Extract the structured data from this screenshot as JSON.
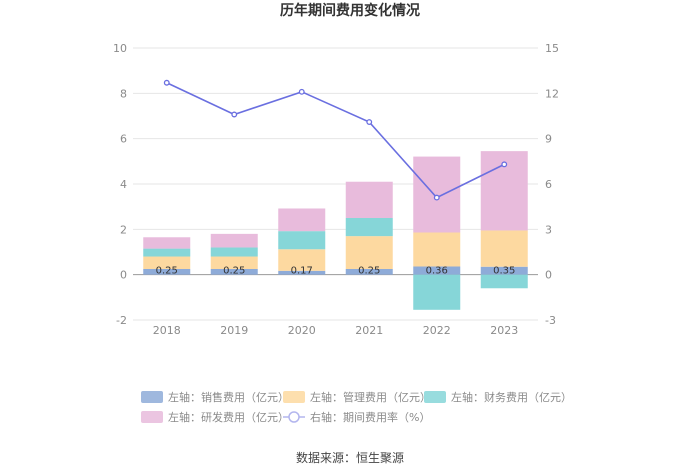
{
  "chart_data": {
    "type": "bar",
    "title": "历年期间费用变化情况",
    "categories": [
      "2018",
      "2019",
      "2020",
      "2021",
      "2022",
      "2023"
    ],
    "stacked": true,
    "series": [
      {
        "name": "左轴：销售费用（亿元）",
        "axis": "left",
        "kind": "bar",
        "color": "#8eabd8",
        "values": [
          0.25,
          0.25,
          0.17,
          0.25,
          0.36,
          0.35
        ]
      },
      {
        "name": "左轴：管理费用（亿元）",
        "axis": "left",
        "kind": "bar",
        "color": "#fdd9a0",
        "values": [
          0.55,
          0.55,
          0.95,
          1.45,
          1.5,
          1.6
        ]
      },
      {
        "name": "左轴：财务费用（亿元）",
        "axis": "left",
        "kind": "bar",
        "color": "#86d6d8",
        "values": [
          0.35,
          0.4,
          0.8,
          0.8,
          -1.55,
          -0.6
        ]
      },
      {
        "name": "左轴：研发费用（亿元）",
        "axis": "left",
        "kind": "bar",
        "color": "#e8bbdc",
        "values": [
          0.5,
          0.6,
          1.0,
          1.6,
          3.35,
          3.5
        ]
      },
      {
        "name": "右轴：期间费用率（%）",
        "axis": "right",
        "kind": "line",
        "color": "#6a6fe0",
        "values": [
          12.7,
          10.6,
          12.1,
          10.1,
          5.1,
          7.3
        ]
      }
    ],
    "bar_labels": [
      "0.25",
      "0.25",
      "0.17",
      "0.25",
      "0.36",
      "0.35"
    ],
    "y_left": {
      "min": -2,
      "max": 10,
      "ticks": [
        "-2",
        "0",
        "2",
        "4",
        "6",
        "8",
        "10"
      ]
    },
    "y_right": {
      "min": -3,
      "max": 15,
      "ticks": [
        "-3",
        "0",
        "3",
        "6",
        "9",
        "12",
        "15"
      ]
    },
    "grid": true,
    "legend_position": "bottom",
    "source": "数据来源：恒生聚源"
  }
}
